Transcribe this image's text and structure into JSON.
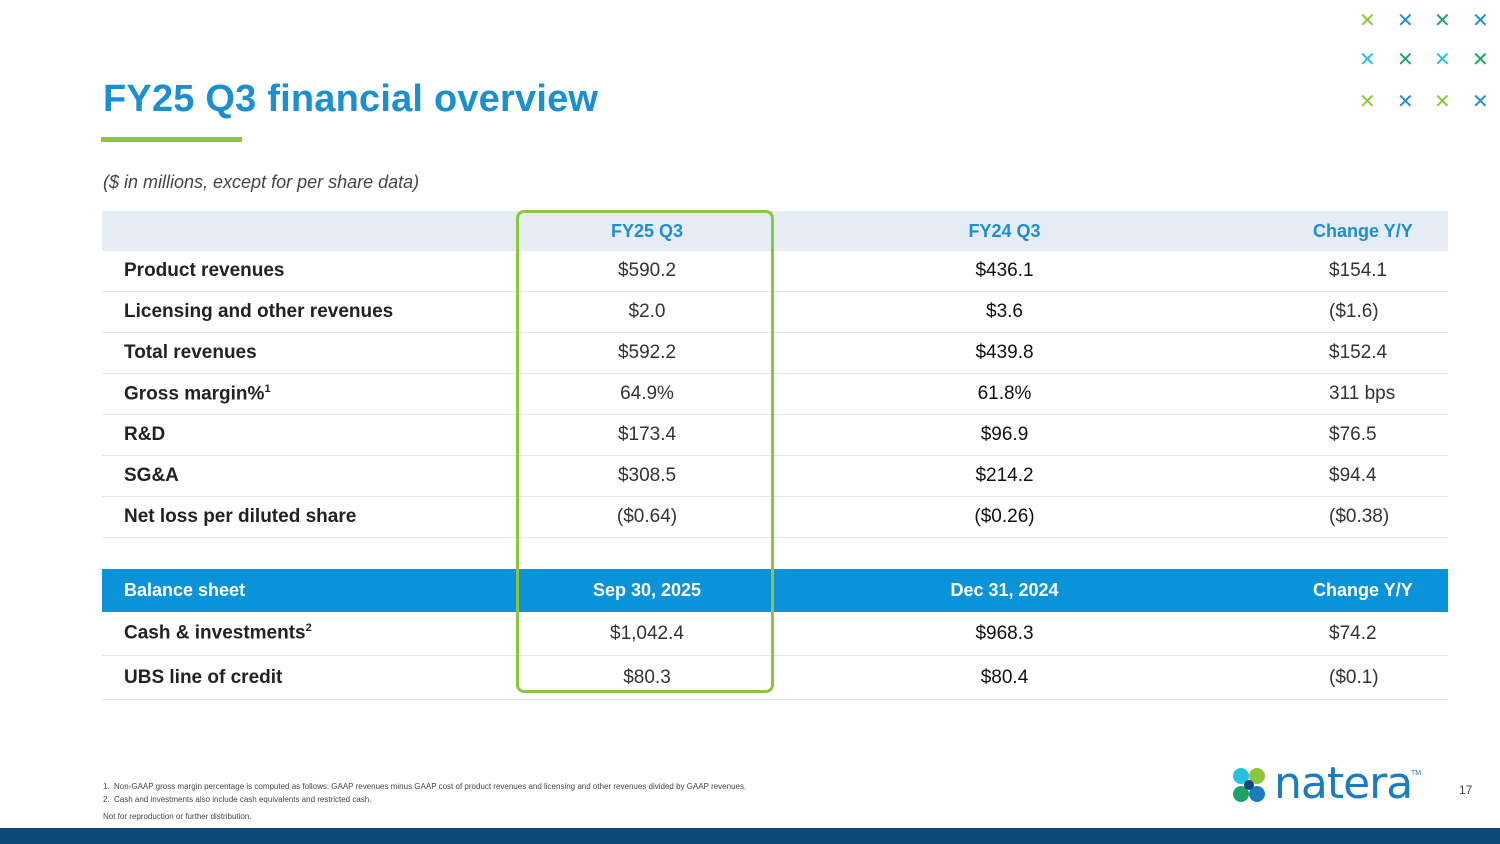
{
  "title": "FY25 Q3 financial overview",
  "units_note": "($ in millions, except for per share data)",
  "income_table": {
    "headers": [
      "",
      "FY25 Q3",
      "FY24 Q3",
      "Change Y/Y"
    ],
    "rows": [
      {
        "label": "Product revenues",
        "sup": "",
        "values": [
          "$590.2",
          "$436.1",
          "$154.1"
        ]
      },
      {
        "label": "Licensing and other revenues",
        "sup": "",
        "values": [
          "$2.0",
          "$3.6",
          "($1.6)"
        ]
      },
      {
        "label": "Total revenues",
        "sup": "",
        "values": [
          "$592.2",
          "$439.8",
          "$152.4"
        ]
      },
      {
        "label": "Gross margin%",
        "sup": "1",
        "values": [
          "64.9%",
          "61.8%",
          "311 bps"
        ]
      },
      {
        "label": "R&D",
        "sup": "",
        "values": [
          "$173.4",
          "$96.9",
          "$76.5"
        ]
      },
      {
        "label": "SG&A",
        "sup": "",
        "values": [
          "$308.5",
          "$214.2",
          "$94.4"
        ]
      },
      {
        "label": "Net loss per diluted share",
        "sup": "",
        "values": [
          "($0.64)",
          "($0.26)",
          "($0.38)"
        ]
      }
    ]
  },
  "balance_table": {
    "headers": [
      "Balance sheet",
      "Sep 30, 2025",
      "Dec 31, 2024",
      "Change Y/Y"
    ],
    "rows": [
      {
        "label": "Cash & investments",
        "sup": "2",
        "values": [
          "$1,042.4",
          "$968.3",
          "$74.2"
        ]
      },
      {
        "label": "UBS line of credit",
        "sup": "",
        "values": [
          "$80.3",
          "$80.4",
          "($0.1)"
        ]
      }
    ]
  },
  "footnotes": [
    {
      "num": "1.",
      "text": "Non-GAAP gross margin percentage is computed as follows: GAAP revenues minus GAAP cost of product revenues and licensing and other revenues divided by GAAP revenues."
    },
    {
      "num": "2.",
      "text": "Cash and investments also include cash equivalents and restricted cash."
    }
  ],
  "disclaimer": "Not for reproduction or further distribution.",
  "page_number": "17",
  "logo": {
    "text": "natera",
    "tm": "TM"
  },
  "colors": {
    "title_blue": "#1b8fd0",
    "accent_green": "#8cc63f",
    "header_bar_blue": "#0b93da",
    "footer_navy": "#0d4a7a",
    "x_green": "#8cc63f",
    "x_blue": "#1b8fd0",
    "x_cyan": "#27c0e0",
    "x_teal": "#1aa36b"
  },
  "icons": {
    "decor": "x-mark-icon",
    "logo_mark": "natera-logo-icon"
  }
}
